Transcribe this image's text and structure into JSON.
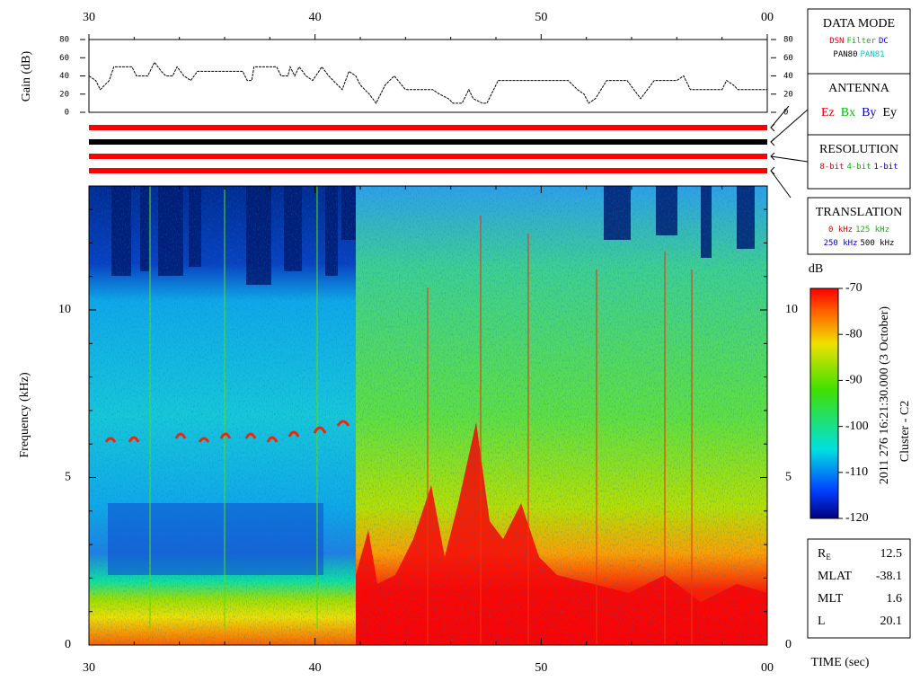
{
  "chart_data": [
    {
      "type": "line",
      "y_label": "Gain (dB)",
      "color": "#000000",
      "x": [
        30.0,
        30.3,
        30.5,
        30.9,
        31.1,
        31.9,
        32.1,
        32.6,
        32.9,
        33.2,
        33.4,
        33.7,
        33.9,
        34.2,
        34.5,
        34.8,
        35.2,
        36.8,
        37.0,
        37.2,
        37.3,
        38.3,
        38.5,
        38.8,
        38.9,
        39.1,
        39.3,
        39.6,
        39.9,
        40.3,
        40.6,
        41.0,
        41.2,
        41.5,
        41.8,
        42.0,
        42.4,
        42.7,
        43.1,
        43.5,
        44.0,
        45.2,
        45.5,
        45.9,
        46.1,
        46.5,
        46.8,
        47.0,
        47.4,
        47.6,
        47.9,
        48.1,
        51.2,
        51.6,
        51.9,
        52.1,
        52.4,
        52.9,
        53.8,
        54.1,
        54.4,
        55.0,
        56.0,
        56.3,
        56.6,
        58.0,
        58.2,
        58.5,
        58.7,
        60.0
      ],
      "values": [
        40,
        35,
        25,
        35,
        50,
        50,
        40,
        40,
        55,
        45,
        40,
        40,
        50,
        40,
        35,
        45,
        45,
        45,
        35,
        35,
        50,
        50,
        40,
        40,
        50,
        40,
        50,
        40,
        35,
        50,
        40,
        30,
        25,
        45,
        40,
        30,
        20,
        10,
        30,
        40,
        25,
        25,
        20,
        15,
        10,
        10,
        25,
        15,
        10,
        10,
        25,
        35,
        35,
        25,
        20,
        10,
        15,
        35,
        35,
        25,
        15,
        35,
        35,
        40,
        25,
        25,
        35,
        30,
        25,
        25
      ],
      "xlim": [
        30,
        60
      ],
      "xticks": [
        30,
        40,
        50,
        {
          "value": 60,
          "label": "00"
        }
      ],
      "ylim": [
        0,
        80
      ],
      "yticks": [
        0,
        20,
        40,
        60,
        80
      ]
    },
    {
      "type": "spectrogram",
      "x_label": "TIME (sec)",
      "y_label": "Frequency (kHz)",
      "xlim": [
        30,
        60
      ],
      "xticks": [
        30,
        40,
        50,
        {
          "value": 60,
          "label": "00"
        }
      ],
      "ylim": [
        0,
        13.7
      ],
      "yticks": [
        0,
        5,
        10
      ]
    },
    {
      "type": "colorbar",
      "title": "dB",
      "ylim": [
        -120,
        -70
      ],
      "yticks": [
        -70,
        -80,
        -90,
        -100,
        -110,
        -120
      ]
    }
  ],
  "status_panels": [
    {
      "title": "DATA MODE",
      "color": "#ff0000",
      "rows": [
        [
          {
            "label": "DSN",
            "color": "#e00000"
          },
          {
            "label": "Filter",
            "color": "#00c000"
          },
          {
            "label": "DC",
            "color": "#0000e0"
          }
        ],
        [
          {
            "label": "PAN80",
            "color": "#000000"
          },
          {
            "label": "PAN81",
            "color": "#00c8c8"
          }
        ]
      ]
    },
    {
      "title": "ANTENNA",
      "color": "#000000",
      "rows": [
        [
          {
            "label": "Ez",
            "color": "#e00000"
          },
          {
            "label": "Bx",
            "color": "#00c000"
          },
          {
            "label": "By",
            "color": "#0000e0"
          },
          {
            "label": "Ey",
            "color": "#000000"
          }
        ]
      ]
    },
    {
      "title": "RESOLUTION",
      "color": "#ff0000",
      "rows": [
        [
          {
            "label": "8-bit",
            "color": "#e00000"
          },
          {
            "label": "4-bit",
            "color": "#00c000"
          },
          {
            "label": "1-bit",
            "color": "#0000e0"
          }
        ]
      ]
    },
    {
      "title": "TRANSLATION",
      "color": "#ff0000",
      "rows": [
        [
          {
            "label": "0 kHz",
            "color": "#e00000"
          },
          {
            "label": "125 kHz",
            "color": "#00c000"
          }
        ],
        [
          {
            "label": "250 kHz",
            "color": "#0000e0"
          },
          {
            "label": "500 kHz",
            "color": "#000000"
          }
        ]
      ]
    }
  ],
  "header": {
    "timestamp": "2011 276 16:21:30.000 (3 October)",
    "spacecraft": "Cluster - C2"
  },
  "orbit": [
    {
      "label": "R",
      "subscript": "E",
      "value": 12.5
    },
    {
      "label": "MLAT",
      "value": -38.1
    },
    {
      "label": "MLT",
      "value": 1.6
    },
    {
      "label": "L",
      "value": 20.1
    }
  ]
}
